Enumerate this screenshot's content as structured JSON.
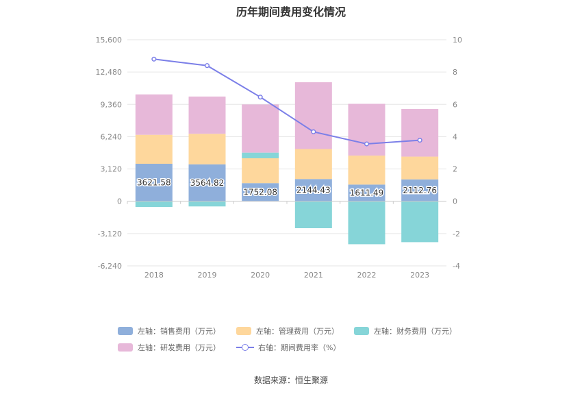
{
  "title": "历年期间费用变化情况",
  "source": "数据来源：恒生聚源",
  "colors": {
    "sales": "#8fafdb",
    "management": "#fed79c",
    "finance": "#86d5d8",
    "rnd": "#e7b8d9",
    "rate": "#7b7fe8",
    "grid": "#e6e6e6",
    "axis_text": "#888888"
  },
  "legend": [
    {
      "key": "sales",
      "label": "左轴：销售费用（万元）",
      "kind": "bar"
    },
    {
      "key": "management",
      "label": "左轴：管理费用（万元）",
      "kind": "bar"
    },
    {
      "key": "finance",
      "label": "左轴：财务费用（万元）",
      "kind": "bar"
    },
    {
      "key": "rnd",
      "label": "左轴：研发费用（万元）",
      "kind": "bar"
    },
    {
      "key": "rate",
      "label": "右轴：期间费用率（%）",
      "kind": "line"
    }
  ],
  "chart_data": {
    "type": "bar",
    "stacked": true,
    "categories": [
      "2018",
      "2019",
      "2020",
      "2021",
      "2022",
      "2023"
    ],
    "series": [
      {
        "name": "左轴：销售费用（万元）",
        "key": "sales",
        "axis": "left",
        "values": [
          3621.58,
          3564.82,
          1752.08,
          2144.43,
          1611.49,
          2112.76
        ],
        "labels": [
          "3621.58",
          "3564.82",
          "1752.08",
          "2144.43",
          "1611.49",
          "2112.76"
        ]
      },
      {
        "name": "左轴：管理费用（万元）",
        "key": "management",
        "axis": "left",
        "values": [
          2800,
          2950,
          2400,
          2900,
          2800,
          2200
        ]
      },
      {
        "name": "左轴：财务费用（万元）",
        "key": "finance",
        "axis": "left",
        "values": [
          -550,
          -500,
          550,
          -2600,
          -4150,
          -3950
        ]
      },
      {
        "name": "左轴：研发费用（万元）",
        "key": "rnd",
        "axis": "left",
        "values": [
          3900,
          3600,
          4650,
          6450,
          5000,
          4600
        ]
      },
      {
        "name": "右轴：期间费用率（%）",
        "key": "rate",
        "axis": "right",
        "type": "line",
        "values": [
          8.8,
          8.4,
          6.45,
          4.3,
          3.55,
          3.78
        ]
      }
    ],
    "left_axis": {
      "ticks": [
        "15,600",
        "12,480",
        "9,360",
        "6,240",
        "3,120",
        "0",
        "-3,120",
        "-6,240"
      ],
      "min": -6240,
      "max": 15600
    },
    "right_axis": {
      "ticks": [
        "10",
        "8",
        "6",
        "4",
        "2",
        "0",
        "-2",
        "-4"
      ],
      "min": -4,
      "max": 10
    },
    "grid": true,
    "legend_position": "bottom"
  }
}
